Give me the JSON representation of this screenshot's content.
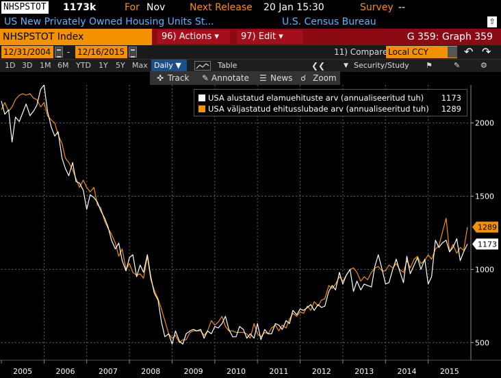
{
  "header": {
    "ticker": "NHSPSTOT",
    "value": "1173k",
    "for_label": "For",
    "for_value": "Nov",
    "next_release_label": "Next Release",
    "next_release_value": "20 Jan 15:30",
    "survey_label": "Survey",
    "survey_value": "--"
  },
  "description": {
    "name": "US New Privately Owned Housing Units St...",
    "source": "U.S. Census Bureau"
  },
  "actionbar": {
    "index": "NHSPSTOT Index",
    "actions": "96) Actions",
    "edit": "97) Edit",
    "graph": "G 359: Graph 359"
  },
  "daterange": {
    "start": "12/31/2004",
    "separator": "-",
    "end": "12/16/2015",
    "compare": "11) Compare",
    "currency": "Local CCY"
  },
  "periods": [
    "1D",
    "3D",
    "1M",
    "6M",
    "YTD",
    "1Y",
    "5Y",
    "Max"
  ],
  "toolbar": {
    "frequency": "Daily",
    "table": "Table",
    "security_study": "Security/Study"
  },
  "tools": {
    "track": "Track",
    "annotate": "Annotate",
    "news": "News",
    "zoom": "Zoom"
  },
  "colors": {
    "accent": "#f39200",
    "series_white": "#ffffff",
    "series_orange": "#f39200",
    "description_blue": "#5ab4ff",
    "actionbar_red": "#8b0a14"
  },
  "chart_data": {
    "type": "line",
    "ylim": [
      380,
      2260
    ],
    "yticks": [
      500,
      1000,
      1500,
      2000
    ],
    "xlim": [
      2005.0,
      2016.0
    ],
    "xticks": [
      "2005",
      "2006",
      "2007",
      "2008",
      "2009",
      "2010",
      "2011",
      "2012",
      "2013",
      "2014",
      "2015"
    ],
    "grid": true,
    "legend_position": "top-right",
    "series": [
      {
        "name": "USA alustatud elamuehituste arv (annualiseeritud tuh)",
        "last_value": "1173",
        "color": "#ffffff",
        "points": [
          [
            2005.0,
            2150
          ],
          [
            2005.08,
            2060
          ],
          [
            2005.17,
            2090
          ],
          [
            2005.25,
            1870
          ],
          [
            2005.33,
            2040
          ],
          [
            2005.42,
            2010
          ],
          [
            2005.5,
            2070
          ],
          [
            2005.58,
            2130
          ],
          [
            2005.67,
            2050
          ],
          [
            2005.75,
            2080
          ],
          [
            2005.83,
            2120
          ],
          [
            2005.92,
            2230
          ],
          [
            2006.0,
            2260
          ],
          [
            2006.08,
            2080
          ],
          [
            2006.17,
            1970
          ],
          [
            2006.25,
            1910
          ],
          [
            2006.33,
            1940
          ],
          [
            2006.42,
            1760
          ],
          [
            2006.5,
            1690
          ],
          [
            2006.58,
            1640
          ],
          [
            2006.67,
            1730
          ],
          [
            2006.75,
            1600
          ],
          [
            2006.83,
            1590
          ],
          [
            2006.92,
            1540
          ],
          [
            2007.0,
            1410
          ],
          [
            2007.08,
            1510
          ],
          [
            2007.17,
            1490
          ],
          [
            2007.25,
            1460
          ],
          [
            2007.33,
            1400
          ],
          [
            2007.42,
            1350
          ],
          [
            2007.5,
            1290
          ],
          [
            2007.58,
            1200
          ],
          [
            2007.67,
            1140
          ],
          [
            2007.75,
            1180
          ],
          [
            2007.83,
            1060
          ],
          [
            2007.92,
            990
          ],
          [
            2008.0,
            1080
          ],
          [
            2008.08,
            1100
          ],
          [
            2008.17,
            950
          ],
          [
            2008.25,
            1030
          ],
          [
            2008.33,
            980
          ],
          [
            2008.42,
            1100
          ],
          [
            2008.5,
            950
          ],
          [
            2008.58,
            840
          ],
          [
            2008.67,
            790
          ],
          [
            2008.75,
            640
          ],
          [
            2008.83,
            540
          ],
          [
            2008.92,
            560
          ],
          [
            2009.0,
            490
          ],
          [
            2009.08,
            580
          ],
          [
            2009.17,
            510
          ],
          [
            2009.25,
            490
          ],
          [
            2009.33,
            560
          ],
          [
            2009.42,
            580
          ],
          [
            2009.5,
            590
          ],
          [
            2009.58,
            580
          ],
          [
            2009.67,
            590
          ],
          [
            2009.75,
            530
          ],
          [
            2009.83,
            580
          ],
          [
            2009.92,
            560
          ],
          [
            2010.0,
            610
          ],
          [
            2010.08,
            600
          ],
          [
            2010.17,
            630
          ],
          [
            2010.25,
            680
          ],
          [
            2010.33,
            590
          ],
          [
            2010.42,
            540
          ],
          [
            2010.5,
            540
          ],
          [
            2010.58,
            610
          ],
          [
            2010.67,
            590
          ],
          [
            2010.75,
            530
          ],
          [
            2010.83,
            560
          ],
          [
            2010.92,
            530
          ],
          [
            2011.0,
            630
          ],
          [
            2011.08,
            520
          ],
          [
            2011.17,
            590
          ],
          [
            2011.25,
            560
          ],
          [
            2011.33,
            560
          ],
          [
            2011.42,
            630
          ],
          [
            2011.5,
            620
          ],
          [
            2011.58,
            590
          ],
          [
            2011.67,
            650
          ],
          [
            2011.75,
            630
          ],
          [
            2011.83,
            720
          ],
          [
            2011.92,
            690
          ],
          [
            2012.0,
            730
          ],
          [
            2012.08,
            720
          ],
          [
            2012.17,
            740
          ],
          [
            2012.25,
            760
          ],
          [
            2012.33,
            720
          ],
          [
            2012.42,
            760
          ],
          [
            2012.5,
            740
          ],
          [
            2012.58,
            750
          ],
          [
            2012.67,
            850
          ],
          [
            2012.75,
            890
          ],
          [
            2012.83,
            860
          ],
          [
            2012.92,
            980
          ],
          [
            2013.0,
            900
          ],
          [
            2013.08,
            960
          ],
          [
            2013.17,
            1000
          ],
          [
            2013.25,
            850
          ],
          [
            2013.33,
            920
          ],
          [
            2013.42,
            860
          ],
          [
            2013.5,
            900
          ],
          [
            2013.58,
            890
          ],
          [
            2013.67,
            880
          ],
          [
            2013.75,
            1020
          ],
          [
            2013.83,
            1100
          ],
          [
            2013.92,
            1000
          ],
          [
            2014.0,
            900
          ],
          [
            2014.08,
            910
          ],
          [
            2014.17,
            1000
          ],
          [
            2014.25,
            1070
          ],
          [
            2014.33,
            990
          ],
          [
            2014.42,
            910
          ],
          [
            2014.5,
            1090
          ],
          [
            2014.58,
            970
          ],
          [
            2014.67,
            1030
          ],
          [
            2014.75,
            1080
          ],
          [
            2014.83,
            1000
          ],
          [
            2014.92,
            1070
          ],
          [
            2015.0,
            900
          ],
          [
            2015.08,
            950
          ],
          [
            2015.17,
            1200
          ],
          [
            2015.25,
            1150
          ],
          [
            2015.33,
            1180
          ],
          [
            2015.42,
            1200
          ],
          [
            2015.5,
            1120
          ],
          [
            2015.58,
            1150
          ],
          [
            2015.67,
            1210
          ],
          [
            2015.75,
            1060
          ],
          [
            2015.83,
            1120
          ],
          [
            2015.92,
            1173
          ]
        ]
      },
      {
        "name": "USA väljastatud ehitusslubade arv (annualiseeritud tuh)",
        "last_value": "1289",
        "color": "#f39200",
        "points": [
          [
            2005.0,
            2090
          ],
          [
            2005.08,
            2140
          ],
          [
            2005.17,
            2080
          ],
          [
            2005.25,
            2110
          ],
          [
            2005.33,
            2160
          ],
          [
            2005.42,
            2190
          ],
          [
            2005.5,
            2200
          ],
          [
            2005.58,
            2190
          ],
          [
            2005.67,
            2200
          ],
          [
            2005.75,
            2170
          ],
          [
            2005.83,
            2160
          ],
          [
            2005.92,
            2110
          ],
          [
            2006.0,
            2140
          ],
          [
            2006.08,
            2050
          ],
          [
            2006.17,
            2020
          ],
          [
            2006.25,
            2000
          ],
          [
            2006.33,
            1920
          ],
          [
            2006.42,
            1860
          ],
          [
            2006.5,
            1760
          ],
          [
            2006.58,
            1730
          ],
          [
            2006.67,
            1680
          ],
          [
            2006.75,
            1620
          ],
          [
            2006.83,
            1560
          ],
          [
            2006.92,
            1610
          ],
          [
            2007.0,
            1560
          ],
          [
            2007.08,
            1530
          ],
          [
            2007.17,
            1560
          ],
          [
            2007.25,
            1440
          ],
          [
            2007.33,
            1420
          ],
          [
            2007.42,
            1330
          ],
          [
            2007.5,
            1280
          ],
          [
            2007.58,
            1240
          ],
          [
            2007.67,
            1180
          ],
          [
            2007.75,
            1090
          ],
          [
            2007.83,
            1140
          ],
          [
            2007.92,
            1000
          ],
          [
            2008.0,
            1040
          ],
          [
            2008.08,
            980
          ],
          [
            2008.17,
            960
          ],
          [
            2008.25,
            970
          ],
          [
            2008.33,
            940
          ],
          [
            2008.42,
            1090
          ],
          [
            2008.5,
            930
          ],
          [
            2008.58,
            860
          ],
          [
            2008.67,
            800
          ],
          [
            2008.75,
            730
          ],
          [
            2008.83,
            650
          ],
          [
            2008.92,
            560
          ],
          [
            2009.0,
            530
          ],
          [
            2009.08,
            550
          ],
          [
            2009.17,
            500
          ],
          [
            2009.25,
            520
          ],
          [
            2009.33,
            520
          ],
          [
            2009.42,
            570
          ],
          [
            2009.5,
            580
          ],
          [
            2009.58,
            580
          ],
          [
            2009.67,
            580
          ],
          [
            2009.75,
            550
          ],
          [
            2009.83,
            580
          ],
          [
            2009.92,
            650
          ],
          [
            2010.0,
            620
          ],
          [
            2010.08,
            640
          ],
          [
            2010.17,
            680
          ],
          [
            2010.25,
            610
          ],
          [
            2010.33,
            580
          ],
          [
            2010.42,
            580
          ],
          [
            2010.5,
            570
          ],
          [
            2010.58,
            570
          ],
          [
            2010.67,
            570
          ],
          [
            2010.75,
            560
          ],
          [
            2010.83,
            530
          ],
          [
            2010.92,
            630
          ],
          [
            2011.0,
            560
          ],
          [
            2011.08,
            540
          ],
          [
            2011.17,
            570
          ],
          [
            2011.25,
            560
          ],
          [
            2011.33,
            600
          ],
          [
            2011.42,
            620
          ],
          [
            2011.5,
            580
          ],
          [
            2011.58,
            620
          ],
          [
            2011.67,
            600
          ],
          [
            2011.75,
            660
          ],
          [
            2011.83,
            700
          ],
          [
            2011.92,
            680
          ],
          [
            2012.0,
            710
          ],
          [
            2012.08,
            700
          ],
          [
            2012.17,
            750
          ],
          [
            2012.25,
            720
          ],
          [
            2012.33,
            780
          ],
          [
            2012.42,
            750
          ],
          [
            2012.5,
            790
          ],
          [
            2012.58,
            800
          ],
          [
            2012.67,
            890
          ],
          [
            2012.75,
            870
          ],
          [
            2012.83,
            900
          ],
          [
            2012.92,
            950
          ],
          [
            2013.0,
            920
          ],
          [
            2013.08,
            960
          ],
          [
            2013.17,
            1000
          ],
          [
            2013.25,
            1010
          ],
          [
            2013.33,
            980
          ],
          [
            2013.42,
            920
          ],
          [
            2013.5,
            950
          ],
          [
            2013.58,
            930
          ],
          [
            2013.67,
            980
          ],
          [
            2013.75,
            1010
          ],
          [
            2013.83,
            1020
          ],
          [
            2013.92,
            990
          ],
          [
            2014.0,
            990
          ],
          [
            2014.08,
            1030
          ],
          [
            2014.17,
            1010
          ],
          [
            2014.25,
            1040
          ],
          [
            2014.33,
            1000
          ],
          [
            2014.42,
            980
          ],
          [
            2014.5,
            1060
          ],
          [
            2014.58,
            1010
          ],
          [
            2014.67,
            1070
          ],
          [
            2014.75,
            1090
          ],
          [
            2014.83,
            1040
          ],
          [
            2014.92,
            1060
          ],
          [
            2015.0,
            1100
          ],
          [
            2015.08,
            1070
          ],
          [
            2015.17,
            1140
          ],
          [
            2015.25,
            1160
          ],
          [
            2015.33,
            1250
          ],
          [
            2015.42,
            1350
          ],
          [
            2015.5,
            1120
          ],
          [
            2015.58,
            1170
          ],
          [
            2015.67,
            1110
          ],
          [
            2015.75,
            1150
          ],
          [
            2015.83,
            1130
          ],
          [
            2015.92,
            1289
          ]
        ]
      }
    ]
  }
}
